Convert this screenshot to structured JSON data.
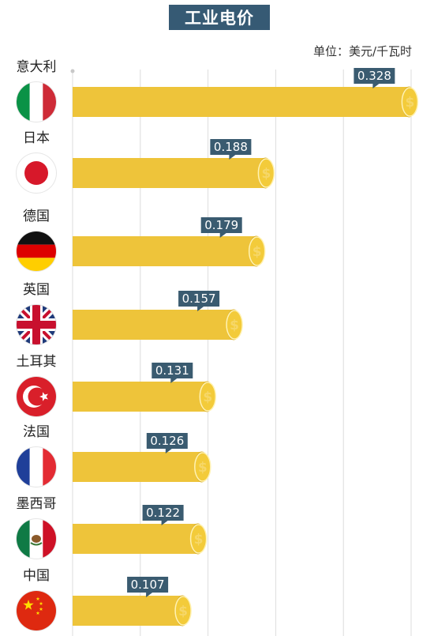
{
  "chart_data": {
    "type": "bar",
    "orientation": "horizontal",
    "title": "工业电价",
    "unit": "单位：美元/千瓦时",
    "categories": [
      "意大利",
      "日本",
      "德国",
      "英国",
      "土耳其",
      "法国",
      "墨西哥",
      "中国"
    ],
    "values": [
      0.328,
      0.188,
      0.179,
      0.157,
      0.131,
      0.126,
      0.122,
      0.107
    ],
    "value_labels": [
      "0.328",
      "0.188",
      "0.179",
      "0.157",
      "0.131",
      "0.126",
      "0.122",
      "0.107"
    ],
    "flags": [
      "italy-flag-icon",
      "japan-flag-icon",
      "germany-flag-icon",
      "uk-flag-icon",
      "turkey-flag-icon",
      "france-flag-icon",
      "mexico-flag-icon",
      "china-flag-icon"
    ],
    "coin_icon": "dollar-coin-icon",
    "grid": true,
    "colors": {
      "bar": "#eec43a",
      "bar_end": "#f2c93c",
      "coin": "#f3cb3a",
      "coin_text": "#f8d86a",
      "label_bg": "#3a5b70",
      "title_bg": "#365a74",
      "grid": "#dcdcdc"
    }
  }
}
